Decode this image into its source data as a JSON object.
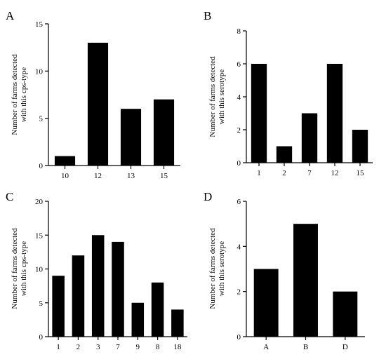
{
  "chart_data": [
    {
      "panel": "A",
      "type": "bar",
      "categories": [
        "10",
        "12",
        "13",
        "15"
      ],
      "values": [
        1,
        13,
        6,
        7
      ],
      "ylabel": [
        "Number of farms detected",
        "with this cps-type"
      ],
      "xlabel": "",
      "ylim": [
        0,
        15
      ],
      "yticks": [
        "0",
        "5",
        "10",
        "15"
      ],
      "grid": false,
      "bar_color": "#000000"
    },
    {
      "panel": "B",
      "type": "bar",
      "categories": [
        "1",
        "2",
        "7",
        "12",
        "15"
      ],
      "values": [
        6,
        1,
        3,
        6,
        2
      ],
      "ylabel": [
        "Number of farms detected",
        "with this serotype"
      ],
      "xlabel": "",
      "ylim": [
        0,
        8
      ],
      "yticks": [
        "0",
        "2",
        "4",
        "6",
        "8"
      ],
      "grid": false,
      "bar_color": "#000000"
    },
    {
      "panel": "C",
      "type": "bar",
      "categories": [
        "1",
        "2",
        "3",
        "7",
        "9",
        "8",
        "18"
      ],
      "values": [
        9,
        12,
        15,
        14,
        5,
        8,
        4
      ],
      "ylabel": [
        "Number of farms detected",
        "with this cps-type"
      ],
      "xlabel": "",
      "ylim": [
        0,
        20
      ],
      "yticks": [
        "0",
        "5",
        "10",
        "15",
        "20"
      ],
      "grid": false,
      "bar_color": "#000000"
    },
    {
      "panel": "D",
      "type": "bar",
      "categories": [
        "A",
        "B",
        "D"
      ],
      "values": [
        3,
        5,
        2
      ],
      "ylabel": [
        "Number of farms detected",
        "with this serotype"
      ],
      "xlabel": "",
      "ylim": [
        0,
        6
      ],
      "yticks": [
        "0",
        "2",
        "4",
        "6"
      ],
      "grid": false,
      "bar_color": "#000000"
    }
  ]
}
